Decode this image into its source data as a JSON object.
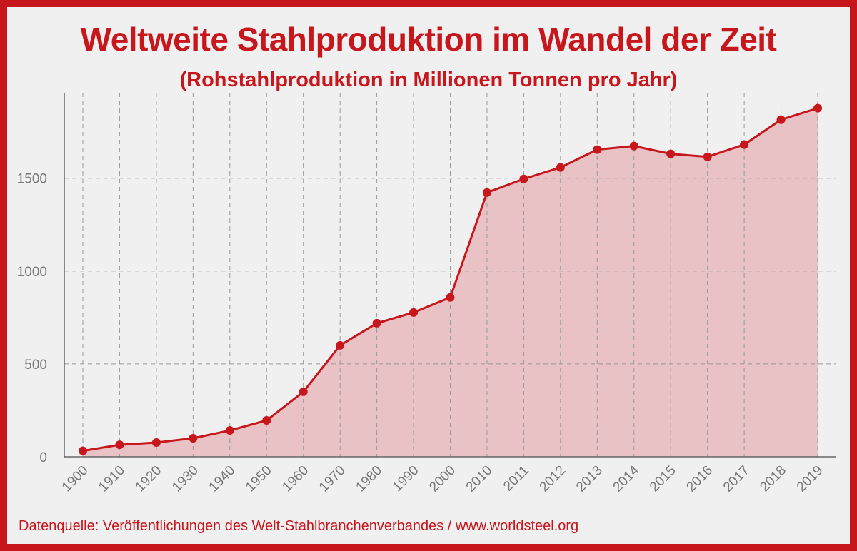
{
  "chart_data": {
    "type": "area",
    "title": "Weltweite Stahlproduktion im Wandel der Zeit",
    "subtitle": "(Rohstahlproduktion in Millionen Tonnen pro Jahr)",
    "xlabel": "",
    "ylabel": "",
    "categories": [
      "1900",
      "1910",
      "1920",
      "1930",
      "1940",
      "1950",
      "1960",
      "1970",
      "1980",
      "1990",
      "2000",
      "2010",
      "2011",
      "2012",
      "2013",
      "2014",
      "2015",
      "2016",
      "2017",
      "2018",
      "2019"
    ],
    "values": [
      32,
      65,
      77,
      100,
      142,
      196,
      350,
      600,
      719,
      777,
      858,
      1423,
      1496,
      1558,
      1654,
      1673,
      1631,
      1615,
      1681,
      1815,
      1877
    ],
    "yticks": [
      0,
      500,
      1000,
      1500
    ],
    "ylim": [
      0,
      1960
    ],
    "grid": true,
    "colors": {
      "line": "#c8161d",
      "fill": "#e8c2c4",
      "frame": "#c8161d",
      "background": "#f0f0f0"
    }
  },
  "source": "Datenquelle: Veröffentlichungen des Welt-Stahlbranchenverbandes / www.worldsteel.org"
}
